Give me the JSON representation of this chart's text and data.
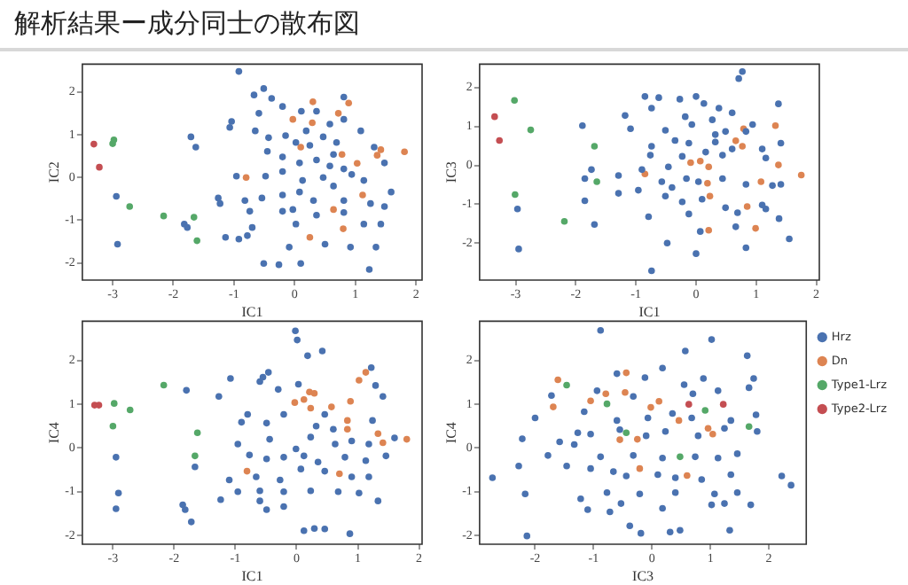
{
  "chart_data": [
    {
      "type": "scatter",
      "title": "解析結果ー成分同士の散布図",
      "xlabel": "IC1",
      "ylabel": "IC2",
      "xlim": [
        -3.5,
        2.1
      ],
      "ylim": [
        -2.4,
        2.65
      ],
      "xticks": [
        -3,
        -2,
        -1,
        0,
        1,
        2
      ],
      "yticks": [
        -2,
        -1,
        0,
        1,
        2
      ],
      "marker": "circle",
      "series": [
        {
          "color": "#4a72b0",
          "x": [
            -0.92,
            -0.51,
            -0.67,
            -0.38,
            0.81,
            -1.04,
            -1.07,
            -1.71,
            -1.63,
            -0.2,
            0.11,
            0.36,
            0.58,
            -0.65,
            -0.43,
            -0.15,
            0.02,
            0.25,
            0.47,
            0.69,
            1.09,
            1.31,
            -0.45,
            -0.2,
            0.08,
            0.36,
            0.58,
            0.81,
            1.48,
            -0.96,
            -0.48,
            -0.2,
            0.13,
            0.47,
            0.94,
            -1.26,
            -0.82,
            -0.54,
            -0.2,
            0.08,
            0.31,
            0.81,
            1.25,
            1.59,
            -2.94,
            -1.23,
            -0.74,
            -0.2,
            0.36,
            1.48,
            -1.82,
            -1.77,
            -0.7,
            0.02,
            1.14,
            1.42,
            -1.14,
            -0.92,
            -0.78,
            -0.09,
            0.5,
            0.92,
            1.34,
            -2.92,
            -0.51,
            -0.26,
            0.1,
            1.23,
            -0.59,
            0.81,
            0.19,
            0.64,
            1.14,
            0.64,
            -0.03,
            0.81
          ],
          "values": [
            2.48,
            2.08,
            1.93,
            1.85,
            1.88,
            1.31,
            1.17,
            0.95,
            0.71,
            1.66,
            1.55,
            1.55,
            1.25,
            1.09,
            0.93,
            0.98,
            0.82,
            0.75,
            0.95,
            0.82,
            1.09,
            0.71,
            0.61,
            0.48,
            0.34,
            0.41,
            0.27,
            0.2,
            0.34,
            0.03,
            0.03,
            0.14,
            -0.07,
            0,
            0.07,
            -0.48,
            -0.54,
            -0.48,
            -0.41,
            -0.34,
            -0.54,
            -0.54,
            -0.61,
            -0.34,
            -0.44,
            -0.61,
            -0.79,
            -0.79,
            -0.88,
            -0.68,
            -1.09,
            -1.17,
            -1.17,
            -1.09,
            -1.09,
            -1.09,
            -1.4,
            -1.44,
            -1.36,
            -1.63,
            -1.56,
            -1.63,
            -1.63,
            -1.56,
            -2.01,
            -2.04,
            -2.01,
            -2.15,
            1.5,
            1.36,
            1.09,
            0.54,
            -0.07,
            -0.2,
            -0.75,
            -0.82
          ]
        },
        {
          "color": "#dd8452",
          "x": [
            0.29,
            0.72,
            0.89,
            0.3,
            0.1,
            -0.8,
            0.78,
            1.03,
            1.12,
            1.36,
            1.42,
            1.81,
            0.64,
            0.25,
            0.8,
            -0.03
          ],
          "values": [
            1.28,
            1.5,
            1.74,
            1.77,
            0.71,
            0,
            0.54,
            0.33,
            -0.41,
            0.52,
            0.65,
            0.6,
            -0.75,
            -1.4,
            -1.2,
            1.36
          ]
        },
        {
          "color": "#55a868",
          "x": [
            -3.0,
            -2.98,
            -2.72,
            -2.16,
            -1.66,
            -1.61
          ],
          "values": [
            0.79,
            0.88,
            -0.68,
            -0.9,
            -0.93,
            -1.48
          ]
        },
        {
          "color": "#c44e52",
          "x": [
            -3.31,
            -3.22
          ],
          "values": [
            0.78,
            0.24
          ]
        }
      ]
    },
    {
      "type": "scatter",
      "xlabel": "IC1",
      "ylabel": "IC3",
      "xlim": [
        -3.6,
        2.05
      ],
      "ylim": [
        -2.95,
        2.6
      ],
      "xticks": [
        -3,
        -2,
        -1,
        0,
        1,
        2
      ],
      "yticks": [
        -2,
        -1,
        0,
        1,
        2
      ],
      "marker": "circle",
      "series": [
        {
          "color": "#4a72b0",
          "x": [
            0.77,
            0.71,
            -0.85,
            -0.62,
            -0.27,
            0,
            0.13,
            1.37,
            -1.18,
            -0.74,
            -0.18,
            0.38,
            0.6,
            0.94,
            -1.89,
            -1.09,
            -0.51,
            -0.07,
            0.27,
            0.49,
            -0.74,
            -0.35,
            -0.12,
            0.32,
            0.6,
            1.1,
            1.41,
            -0.76,
            -0.23,
            0.16,
            0.44,
            1.16,
            -1.74,
            -1.85,
            -1.29,
            -0.57,
            -0.4,
            -0.16,
            0.04,
            0.44,
            0.83,
            1.27,
            1.41,
            -1.29,
            -0.96,
            -0.51,
            -0.23,
            0.1,
            0.49,
            1.1,
            -1.85,
            -2.97,
            -0.79,
            -0.12,
            0.69,
            1.16,
            -1.69,
            0.07,
            0.66,
            1.38,
            -0.48,
            -2.95,
            0.83,
            1.55,
            0,
            -0.74,
            0.32,
            0.83,
            -0.9,
            -0.46
          ],
          "values": [
            2.41,
            2.23,
            1.77,
            1.74,
            1.7,
            1.77,
            1.59,
            1.58,
            1.28,
            1.47,
            1.25,
            1.47,
            1.35,
            1.05,
            1.02,
            0.94,
            0.9,
            1.05,
            1.17,
            0.87,
            0.49,
            0.64,
            0.57,
            0.6,
            0.42,
            0.42,
            0.57,
            0.26,
            0.23,
            0.34,
            0.26,
            0.19,
            -0.11,
            -0.34,
            -0.26,
            -0.42,
            -0.57,
            -0.34,
            -0.42,
            -0.34,
            -0.49,
            -0.52,
            -0.49,
            -0.72,
            -0.64,
            -0.79,
            -0.94,
            -0.87,
            -1.09,
            -1.02,
            -0.91,
            -1.12,
            -1.32,
            -1.25,
            -1.22,
            -1.12,
            -1.52,
            -1.7,
            -1.58,
            -1.37,
            -2.0,
            -2.15,
            -2.12,
            -1.89,
            -2.27,
            -2.71,
            0.79,
            0.87,
            -0.11,
            -0.04
          ]
        },
        {
          "color": "#dd8452",
          "x": [
            1.32,
            0.79,
            0.66,
            0.77,
            1.37,
            1.75,
            1.08,
            -0.85,
            -0.09,
            0.07,
            0.21,
            0.19,
            0.23,
            0.85,
            0.99,
            0.21
          ],
          "values": [
            1.02,
            0.94,
            0.63,
            0.49,
            0.01,
            -0.25,
            -0.42,
            -0.22,
            0.07,
            0.11,
            -0.04,
            -0.46,
            -0.79,
            -1.06,
            -1.62,
            -1.67
          ]
        },
        {
          "color": "#55a868",
          "x": [
            -3.02,
            -2.75,
            -3.01,
            -2.19,
            -1.69,
            -1.65
          ],
          "values": [
            1.67,
            0.91,
            -0.75,
            -1.44,
            0.49,
            -0.42
          ]
        },
        {
          "color": "#c44e52",
          "x": [
            -3.35,
            -3.27
          ],
          "values": [
            1.25,
            0.64
          ]
        }
      ]
    },
    {
      "type": "scatter",
      "xlabel": "IC1",
      "ylabel": "IC4",
      "xlim": [
        -3.5,
        2.05
      ],
      "ylim": [
        -2.2,
        2.9
      ],
      "xticks": [
        -3,
        -2,
        -1,
        0,
        1,
        2
      ],
      "yticks": [
        -2,
        -1,
        0,
        1,
        2
      ],
      "marker": "circle",
      "series": [
        {
          "color": "#4a72b0",
          "x": [
            -0.02,
            0.01,
            0.42,
            0.18,
            -1.08,
            -0.55,
            -0.46,
            -0.6,
            -1.8,
            -1.27,
            -0.3,
            0.03,
            1.22,
            1.29,
            1.41,
            -0.8,
            -0.21,
            0.46,
            -0.9,
            -0.49,
            0.32,
            0.6,
            1.24,
            1.6,
            1.46,
            -0.96,
            -0.44,
            -0.01,
            0.23,
            0.63,
            0.9,
            1.18,
            -0.77,
            -0.49,
            -0.21,
            0.12,
            0.35,
            0.79,
            1.13,
            -2.95,
            -1.66,
            -1.1,
            -0.66,
            -0.27,
            0.07,
            0.46,
            0.9,
            1.18,
            -2.91,
            -0.96,
            -0.6,
            -0.21,
            0.23,
            0.68,
            1.02,
            1.33,
            -2.95,
            -1.86,
            -1.82,
            -1.24,
            -0.49,
            -0.21,
            -1.72,
            0.12,
            0.29,
            0.46,
            0.87,
            -0.6
          ],
          "values": [
            2.68,
            2.47,
            2.22,
            2.11,
            1.59,
            1.62,
            1.73,
            1.52,
            1.32,
            1.18,
            1.34,
            1.46,
            1.84,
            1.43,
            1.18,
            0.77,
            0.77,
            0.77,
            0.59,
            0.57,
            0.5,
            0.43,
            0.63,
            0.23,
            -0.18,
            0.09,
            0.2,
            -0.02,
            0.25,
            0.09,
            0.16,
            0.09,
            -0.16,
            -0.25,
            -0.21,
            -0.18,
            -0.32,
            -0.21,
            -0.29,
            -0.21,
            -0.43,
            -0.73,
            -0.66,
            -0.73,
            -0.48,
            -0.53,
            -0.66,
            -0.66,
            -1.03,
            -1.0,
            -0.98,
            -1.0,
            -0.98,
            -1.0,
            -1.03,
            -1.21,
            -1.39,
            -1.3,
            -1.41,
            -1.18,
            -1.41,
            -1.34,
            -1.69,
            -1.89,
            -1.84,
            -1.85,
            -1.96,
            -1.21
          ]
        },
        {
          "color": "#dd8452",
          "x": [
            0.21,
            0.29,
            -0.03,
            0.12,
            0.23,
            0.57,
            0.88,
            1.02,
            1.13,
            0.83,
            0.83,
            1.33,
            1.41,
            1.8,
            0.7,
            -0.81
          ],
          "values": [
            1.28,
            1.25,
            1.04,
            1.11,
            0.91,
            0.94,
            1.07,
            1.55,
            1.73,
            0.63,
            0.43,
            0.33,
            0.12,
            0.2,
            -0.59,
            -0.53
          ]
        },
        {
          "color": "#55a868",
          "x": [
            -2.98,
            -2.72,
            -3.0,
            -2.17,
            -1.62,
            -1.66
          ],
          "values": [
            1.02,
            0.87,
            0.5,
            1.44,
            0.35,
            -0.18
          ]
        },
        {
          "color": "#c44e52",
          "x": [
            -3.3,
            -3.23
          ],
          "values": [
            0.98,
            0.98
          ]
        }
      ]
    },
    {
      "type": "scatter",
      "xlabel": "IC3",
      "ylabel": "IC4",
      "xlim": [
        -2.95,
        2.64
      ],
      "ylim": [
        -2.2,
        2.9
      ],
      "xticks": [
        -2,
        -1,
        0,
        1,
        2
      ],
      "yticks": [
        -2,
        -1,
        0,
        1,
        2
      ],
      "marker": "circle",
      "legend": "right",
      "series": [
        {
          "name": "Hrz",
          "color": "#4a72b0",
          "x": [
            -0.88,
            1.02,
            0.57,
            1.63,
            -1.72,
            -2.0,
            -2.22,
            -0.6,
            -0.12,
            0.18,
            -0.94,
            -0.32,
            0.55,
            0.88,
            1.74,
            1.66,
            0.7,
            1.13,
            -1.16,
            -0.6,
            -0.07,
            0.35,
            0.68,
            1.35,
            1.78,
            -1.27,
            -1.05,
            -0.55,
            -0.1,
            0.23,
            0.79,
            1.24,
            1.8,
            -1.58,
            -1.33,
            -1.78,
            -0.88,
            -0.32,
            0.18,
            0.74,
            1.13,
            1.46,
            -2.28,
            -2.73,
            -1.46,
            -1.05,
            -0.66,
            -0.44,
            0.1,
            0.4,
            0.85,
            1.35,
            2.22,
            2.38,
            -2.17,
            -1.22,
            -0.77,
            -0.21,
            0.4,
            1.07,
            1.46,
            -1.1,
            -0.72,
            -0.53,
            0.18,
            1.02,
            1.69,
            1.24,
            -2.14,
            -0.38,
            -0.19,
            0.31,
            0.48,
            1.33
          ],
          "values": [
            2.69,
            2.48,
            2.22,
            2.11,
            1.2,
            0.69,
            0.21,
            1.7,
            1.61,
            1.83,
            1.31,
            1.18,
            1.45,
            1.59,
            1.59,
            1.38,
            1.24,
            1.31,
            0.83,
            0.63,
            0.69,
            0.79,
            0.69,
            0.63,
            0.76,
            0.35,
            0.32,
            0.42,
            0.28,
            0.38,
            0.28,
            0.45,
            0.38,
            0.14,
            0.08,
            -0.17,
            -0.2,
            -0.17,
            -0.23,
            -0.2,
            -0.23,
            -0.13,
            -0.41,
            -0.68,
            -0.41,
            -0.47,
            -0.54,
            -0.64,
            -0.61,
            -0.68,
            -0.72,
            -0.61,
            -0.64,
            -0.85,
            -1.05,
            -1.16,
            -1.02,
            -1.05,
            -1.02,
            -1.05,
            -1.02,
            -1.41,
            -1.46,
            -1.27,
            -1.38,
            -1.3,
            -1.3,
            -1.27,
            -2.01,
            -1.78,
            -1.95,
            -1.92,
            -1.88,
            -1.88
          ]
        },
        {
          "name": "Dn",
          "color": "#dd8452",
          "x": [
            -1.61,
            -1.69,
            -1.05,
            -0.79,
            -0.46,
            -0.44,
            -0.02,
            0.12,
            0.46,
            0.96,
            1.04,
            -0.55,
            -0.25,
            -0.21,
            0.6
          ],
          "values": [
            1.56,
            0.94,
            1.08,
            1.24,
            1.27,
            1.72,
            0.93,
            1.07,
            0.63,
            0.45,
            0.32,
            0.19,
            0.2,
            -0.47,
            -0.63
          ]
        },
        {
          "name": "Type1-Lrz",
          "color": "#55a868",
          "x": [
            -1.46,
            -0.77,
            -0.44,
            0.91,
            1.66,
            0.48
          ],
          "values": [
            1.44,
            1.01,
            0.35,
            0.86,
            0.49,
            -0.2
          ]
        },
        {
          "name": "Type2-Lrz",
          "color": "#c44e52",
          "x": [
            0.63,
            1.22
          ],
          "values": [
            1.0,
            1.0
          ]
        }
      ]
    }
  ]
}
